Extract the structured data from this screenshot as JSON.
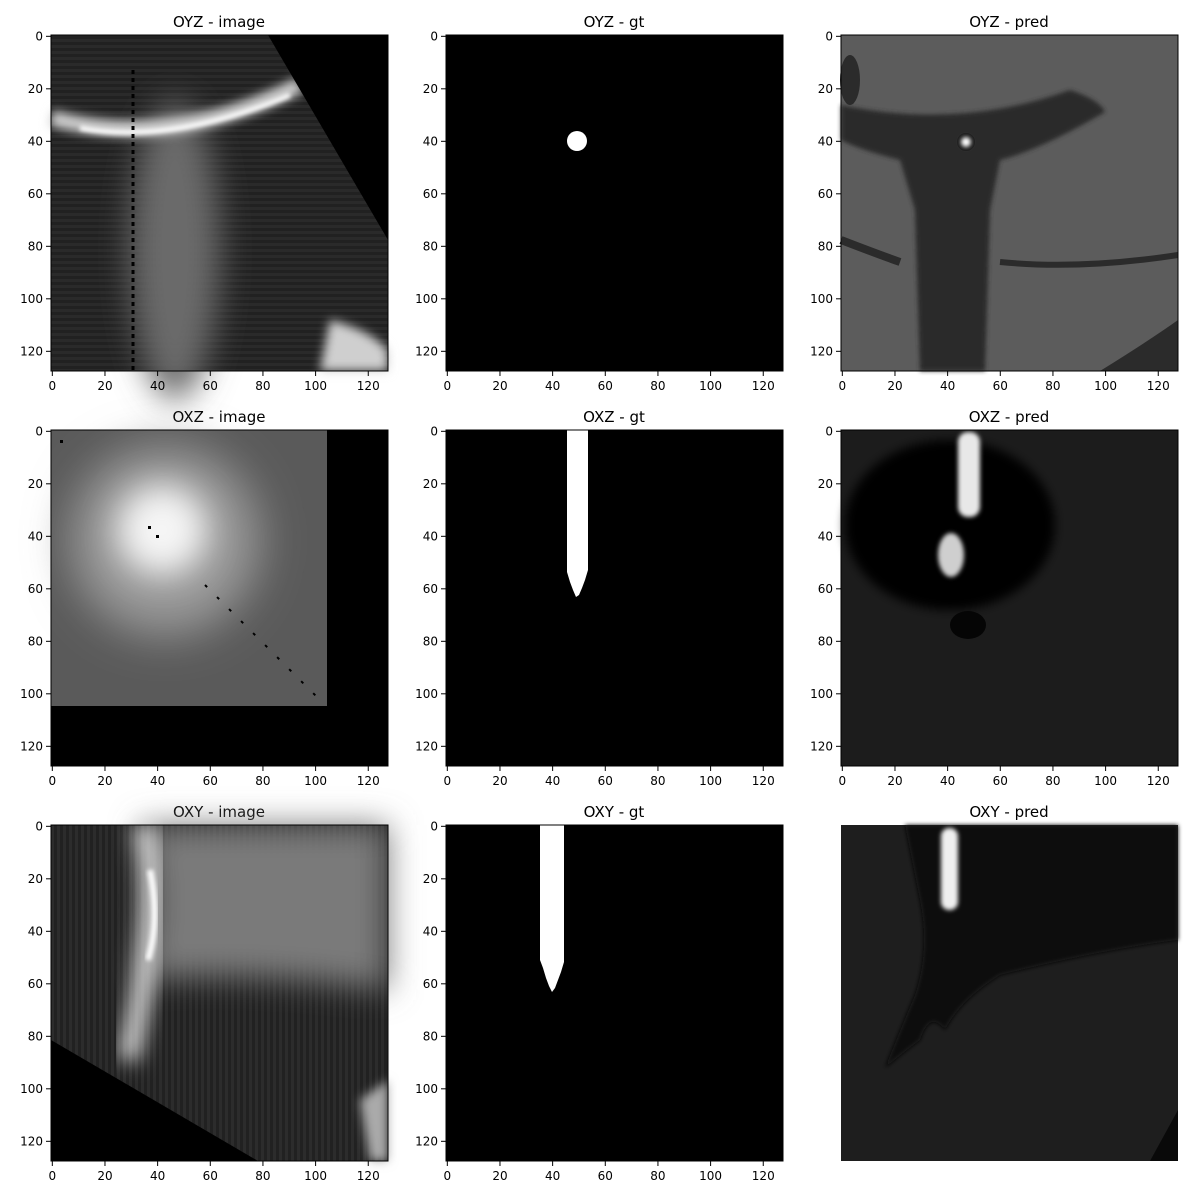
{
  "chart_data": [
    {
      "type": "heatmap",
      "title": "OYZ - image",
      "xlim": [
        0,
        127
      ],
      "ylim": [
        127,
        0
      ],
      "xticks": [
        0,
        20,
        40,
        60,
        80,
        100,
        120
      ],
      "yticks": [
        0,
        20,
        40,
        60,
        80,
        100,
        120
      ],
      "show_axes": true
    },
    {
      "type": "heatmap",
      "title": "OYZ - gt",
      "xlim": [
        0,
        127
      ],
      "ylim": [
        127,
        0
      ],
      "xticks": [
        0,
        20,
        40,
        60,
        80,
        100,
        120
      ],
      "yticks": [
        0,
        20,
        40,
        60,
        80,
        100,
        120
      ],
      "show_axes": true
    },
    {
      "type": "heatmap",
      "title": "OYZ - pred",
      "xlim": [
        0,
        127
      ],
      "ylim": [
        127,
        0
      ],
      "xticks": [
        0,
        20,
        40,
        60,
        80,
        100,
        120
      ],
      "yticks": [
        0,
        20,
        40,
        60,
        80,
        100,
        120
      ],
      "show_axes": true
    },
    {
      "type": "heatmap",
      "title": "OXZ - image",
      "xlim": [
        0,
        127
      ],
      "ylim": [
        127,
        0
      ],
      "xticks": [
        0,
        20,
        40,
        60,
        80,
        100,
        120
      ],
      "yticks": [
        0,
        20,
        40,
        60,
        80,
        100,
        120
      ],
      "show_axes": true
    },
    {
      "type": "heatmap",
      "title": "OXZ - gt",
      "xlim": [
        0,
        127
      ],
      "ylim": [
        127,
        0
      ],
      "xticks": [
        0,
        20,
        40,
        60,
        80,
        100,
        120
      ],
      "yticks": [
        0,
        20,
        40,
        60,
        80,
        100,
        120
      ],
      "show_axes": true
    },
    {
      "type": "heatmap",
      "title": "OXZ - pred",
      "xlim": [
        0,
        127
      ],
      "ylim": [
        127,
        0
      ],
      "xticks": [
        0,
        20,
        40,
        60,
        80,
        100,
        120
      ],
      "yticks": [
        0,
        20,
        40,
        60,
        80,
        100,
        120
      ],
      "show_axes": true
    },
    {
      "type": "heatmap",
      "title": "OXY - image",
      "xlim": [
        0,
        127
      ],
      "ylim": [
        127,
        0
      ],
      "xticks": [
        0,
        20,
        40,
        60,
        80,
        100,
        120
      ],
      "yticks": [
        0,
        20,
        40,
        60,
        80,
        100,
        120
      ],
      "show_axes": true
    },
    {
      "type": "heatmap",
      "title": "OXY - gt",
      "xlim": [
        0,
        127
      ],
      "ylim": [
        127,
        0
      ],
      "xticks": [
        0,
        20,
        40,
        60,
        80,
        100,
        120
      ],
      "yticks": [
        0,
        20,
        40,
        60,
        80,
        100,
        120
      ],
      "show_axes": true
    },
    {
      "type": "heatmap",
      "title": "OXY - pred",
      "xlim": [
        0,
        127
      ],
      "ylim": [
        127,
        0
      ],
      "xticks": [],
      "yticks": [],
      "show_axes": false
    }
  ]
}
